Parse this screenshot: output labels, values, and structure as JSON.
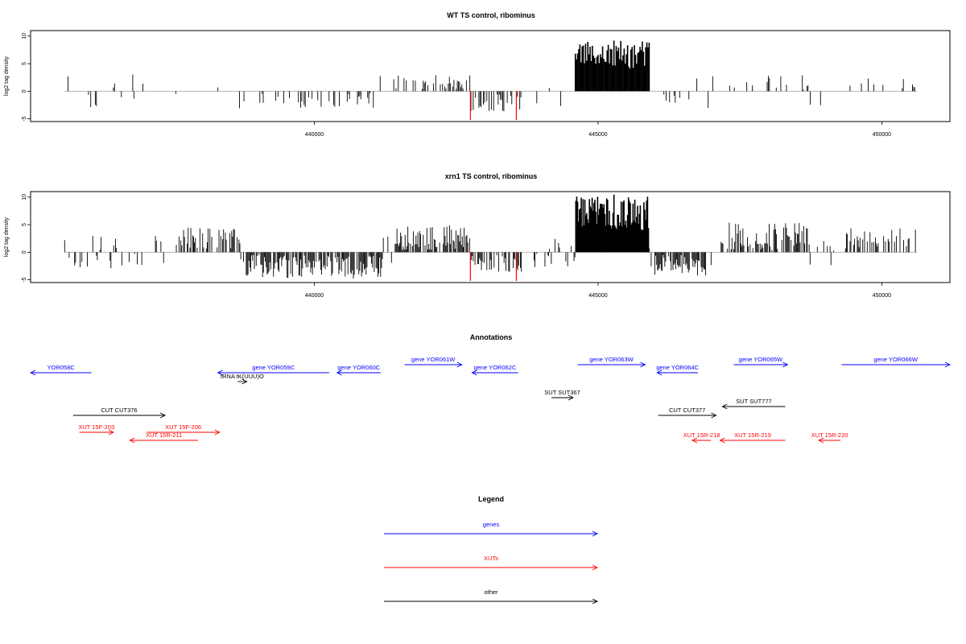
{
  "panels": [
    {
      "title": "WT TS control, ribominus",
      "ylabel": "log2 tag density",
      "seed": 11,
      "peak": 9.2
    },
    {
      "title": "xrn1 TS control, ribominus",
      "ylabel": "log2 tag density",
      "seed": 29,
      "peak": 10.5
    }
  ],
  "chart_data": {
    "type": "bar",
    "xlim": [
      435000,
      451200
    ],
    "ylim": [
      -5.5,
      11
    ],
    "y_ticks": [
      -5,
      0,
      5,
      10
    ],
    "y_tick_labels": [
      "-5",
      "0",
      "5",
      "10"
    ],
    "x_ticks": [
      440000,
      445000,
      450000
    ],
    "x_tick_labels": [
      "440000",
      "445000",
      "450000"
    ],
    "grid": false,
    "bar_color": "#000000",
    "marker_color": "#ff0000",
    "markers_x": [
      442750,
      443560
    ],
    "data_start": 435600,
    "data_end": 450620
  },
  "annotations": {
    "title": "Annotations",
    "features": [
      {
        "label": "YOR058C",
        "display": "YOR058C",
        "start": 434700,
        "end": 436070,
        "dir": "left",
        "kind": "gene",
        "row": 0
      },
      {
        "label": "gene YOR059C",
        "display": "gene YOR059C",
        "start": 438300,
        "end": 440260,
        "dir": "left",
        "kind": "gene",
        "row": 0
      },
      {
        "label": "gene YOR060C",
        "display": "gene YOR060C",
        "start": 440400,
        "end": 441170,
        "dir": "left",
        "kind": "gene",
        "row": 0
      },
      {
        "label": "gene YOR061W",
        "display": "gene YOR061W",
        "start": 441590,
        "end": 442600,
        "dir": "right",
        "kind": "gene",
        "row": -1
      },
      {
        "label": "gene YOR062C",
        "display": "gene YOR062C",
        "start": 442780,
        "end": 443590,
        "dir": "left",
        "kind": "gene",
        "row": 0
      },
      {
        "label": "gene YOR063W",
        "display": "gene YOR063W",
        "start": 444640,
        "end": 445830,
        "dir": "right",
        "kind": "gene",
        "row": -1
      },
      {
        "label": "gene YOR064C",
        "display": "gene YOR064C",
        "start": 446040,
        "end": 446760,
        "dir": "left",
        "kind": "gene",
        "row": 0
      },
      {
        "label": "gene YOR065W",
        "display": "gene YOR065W",
        "start": 447390,
        "end": 448340,
        "dir": "right",
        "kind": "gene",
        "row": -1
      },
      {
        "label": "gene YOR066W",
        "display": "gene YOR066W",
        "start": 449290,
        "end": 451300,
        "dir": "right",
        "kind": "gene",
        "row": -1
      },
      {
        "label": "tRNA tK(UUU)O",
        "display": "tRNA tK(UUU)O",
        "start": 438650,
        "end": 438810,
        "dir": "right",
        "kind": "other",
        "row": 1
      },
      {
        "label": "SUT SUT367",
        "display": "SUT SUT367",
        "start": 444180,
        "end": 444560,
        "dir": "right",
        "kind": "other",
        "row": 2
      },
      {
        "label": "SUT SUT777",
        "display": "SUT SUT777",
        "start": 447190,
        "end": 448300,
        "dir": "left",
        "kind": "other",
        "row": 3
      },
      {
        "label": "CUT CUT376",
        "display": "CUT CUT376",
        "start": 435750,
        "end": 437370,
        "dir": "right",
        "kind": "other",
        "row": 4
      },
      {
        "label": "CUT CUT377",
        "display": "CUT CUT377",
        "start": 446060,
        "end": 447080,
        "dir": "right",
        "kind": "other",
        "row": 4
      },
      {
        "label": "XUT 15F-203",
        "display": "XUT 15F-203",
        "start": 435860,
        "end": 436460,
        "dir": "right",
        "kind": "xut",
        "row": 5
      },
      {
        "label": "XUT 15F-206",
        "display": "XUT 15F-206",
        "start": 437050,
        "end": 438330,
        "dir": "right",
        "kind": "xut",
        "row": 5
      },
      {
        "label": "XUT 15R-211",
        "display": "XUT 15R-211",
        "start": 436750,
        "end": 437950,
        "dir": "left",
        "kind": "xut",
        "row": 6
      },
      {
        "label": "XUT 15R-218",
        "display": "XUT 15R-218",
        "start": 446660,
        "end": 446990,
        "dir": "left",
        "kind": "xut",
        "row": 6
      },
      {
        "label": "XUT 15R-219",
        "display": "XUT 15R-219",
        "start": 447150,
        "end": 448300,
        "dir": "left",
        "kind": "xut",
        "row": 6
      },
      {
        "label": "XUT 15R-220",
        "display": "XUT 15R-220",
        "start": 448890,
        "end": 449270,
        "dir": "left",
        "kind": "xut",
        "row": 6
      }
    ]
  },
  "legend": {
    "title": "Legend",
    "items": [
      {
        "label": "genes",
        "color": "#0000ff"
      },
      {
        "label": "XUTs",
        "color": "#ff0000"
      },
      {
        "label": "other",
        "color": "#000000"
      }
    ]
  },
  "colors": {
    "gene": "#0000ff",
    "xut": "#ff0000",
    "other": "#000000"
  }
}
